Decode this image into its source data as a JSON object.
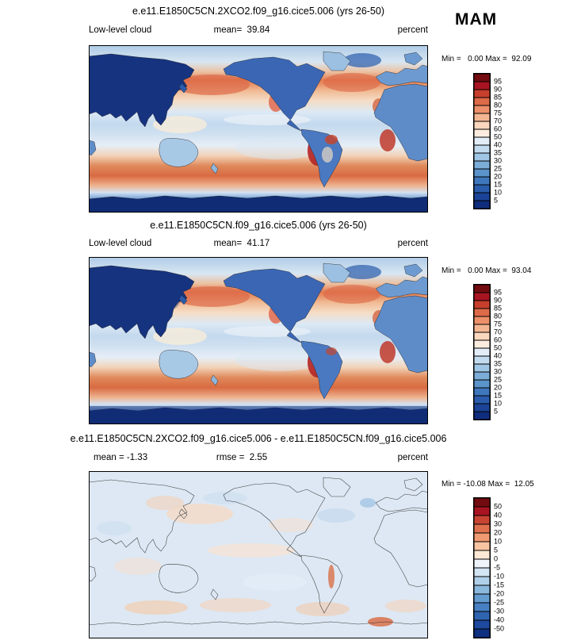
{
  "season_label": "MAM",
  "panels": [
    {
      "title": "e.e11.E1850C5CN.2XCO2.f09_g16.cice5.006 (yrs 26-50)",
      "left_label": "Low-level cloud",
      "center_label": "mean=  39.84",
      "right_label": "percent",
      "minmax_label": "Min =   0.00 Max =  92.09"
    },
    {
      "title": "e.e11.E1850C5CN.f09_g16.cice5.006 (yrs 26-50)",
      "left_label": "Low-level cloud",
      "center_label": "mean=  41.17",
      "right_label": "percent",
      "minmax_label": "Min =   0.00 Max =  93.04"
    },
    {
      "title": "e.e11.E1850C5CN.2XCO2.f09_g16.cice5.006 - e.e11.E1850C5CN.f09_g16.cice5.006",
      "left_label": "mean = -1.33",
      "center_label": "rmse =  2.55",
      "right_label": "percent",
      "minmax_label": "Min = -10.08 Max =  12.05"
    }
  ],
  "colorbars": {
    "cloud": {
      "ticks": [
        "95",
        "90",
        "85",
        "80",
        "75",
        "70",
        "60",
        "50",
        "40",
        "35",
        "30",
        "25",
        "20",
        "15",
        "10",
        "5"
      ],
      "colors": [
        "#730c10",
        "#a81422",
        "#c73f2d",
        "#dd6a48",
        "#ec906a",
        "#f4b692",
        "#fad7bd",
        "#fcece0",
        "#e2edf7",
        "#c3dbef",
        "#9fc6e4",
        "#7badd8",
        "#5b93cb",
        "#3f77bd",
        "#2a5cab",
        "#1b4397",
        "#0f2d7c"
      ]
    },
    "diff": {
      "ticks": [
        "50",
        "40",
        "30",
        "20",
        "10",
        "5",
        "0",
        "-5",
        "-10",
        "-15",
        "-20",
        "-25",
        "-30",
        "-40",
        "-50"
      ],
      "colors": [
        "#730c10",
        "#a81422",
        "#c74432",
        "#e0714e",
        "#f09a72",
        "#f8c4a2",
        "#fde8d5",
        "#eef4fa",
        "#d3e4f3",
        "#b0cfe9",
        "#8bb8dd",
        "#659cd0",
        "#4680c2",
        "#2f64b1",
        "#1d499e",
        "#0f2f80"
      ]
    }
  },
  "chart_data": [
    {
      "type": "heatmap",
      "title": "e.e11.E1850C5CN.2XCO2.f09_g16.cice5.006 (yrs 26-50)",
      "variable": "Low-level cloud",
      "units": "percent",
      "season": "MAM",
      "mean": 39.84,
      "min": 0.0,
      "max": 92.09,
      "contour_levels": [
        5,
        10,
        15,
        20,
        25,
        30,
        35,
        40,
        50,
        60,
        70,
        75,
        80,
        85,
        90,
        95
      ],
      "projection": "global lat-lon world map",
      "legend_position": "right"
    },
    {
      "type": "heatmap",
      "title": "e.e11.E1850C5CN.f09_g16.cice5.006 (yrs 26-50)",
      "variable": "Low-level cloud",
      "units": "percent",
      "season": "MAM",
      "mean": 41.17,
      "min": 0.0,
      "max": 93.04,
      "contour_levels": [
        5,
        10,
        15,
        20,
        25,
        30,
        35,
        40,
        50,
        60,
        70,
        75,
        80,
        85,
        90,
        95
      ],
      "projection": "global lat-lon world map",
      "legend_position": "right"
    },
    {
      "type": "heatmap",
      "title": "e.e11.E1850C5CN.2XCO2.f09_g16.cice5.006 - e.e11.E1850C5CN.f09_g16.cice5.006",
      "variable": "Low-level cloud difference",
      "units": "percent",
      "season": "MAM",
      "mean": -1.33,
      "rmse": 2.55,
      "min": -10.08,
      "max": 12.05,
      "contour_levels": [
        -50,
        -40,
        -30,
        -25,
        -20,
        -15,
        -10,
        -5,
        0,
        5,
        10,
        20,
        30,
        40,
        50
      ],
      "projection": "global lat-lon world map",
      "legend_position": "right"
    }
  ]
}
